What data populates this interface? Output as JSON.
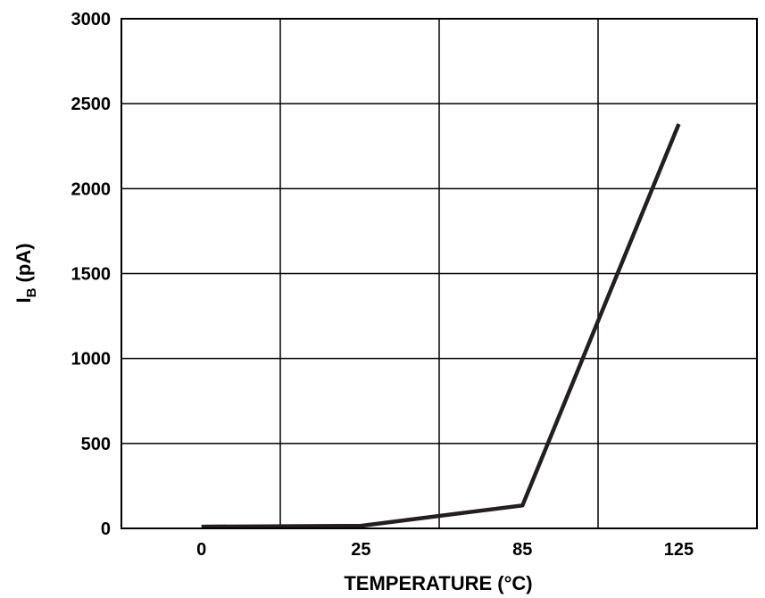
{
  "chart_data": {
    "type": "line",
    "title": "",
    "xlabel": "TEMPERATURE (°C)",
    "ylabel_main": "I",
    "ylabel_sub": "B",
    "ylabel_unit": " (pA)",
    "categories": [
      "0",
      "25",
      "85",
      "125"
    ],
    "series": [
      {
        "values": [
          10,
          15,
          135,
          2380
        ]
      }
    ],
    "ylim": [
      0,
      3000
    ],
    "yticks": [
      0,
      500,
      1000,
      1500,
      2000,
      2500,
      3000
    ],
    "grid": true,
    "legend": "none",
    "colors": {
      "line": "#231f20",
      "grid": "#000000",
      "text": "#000000"
    }
  }
}
